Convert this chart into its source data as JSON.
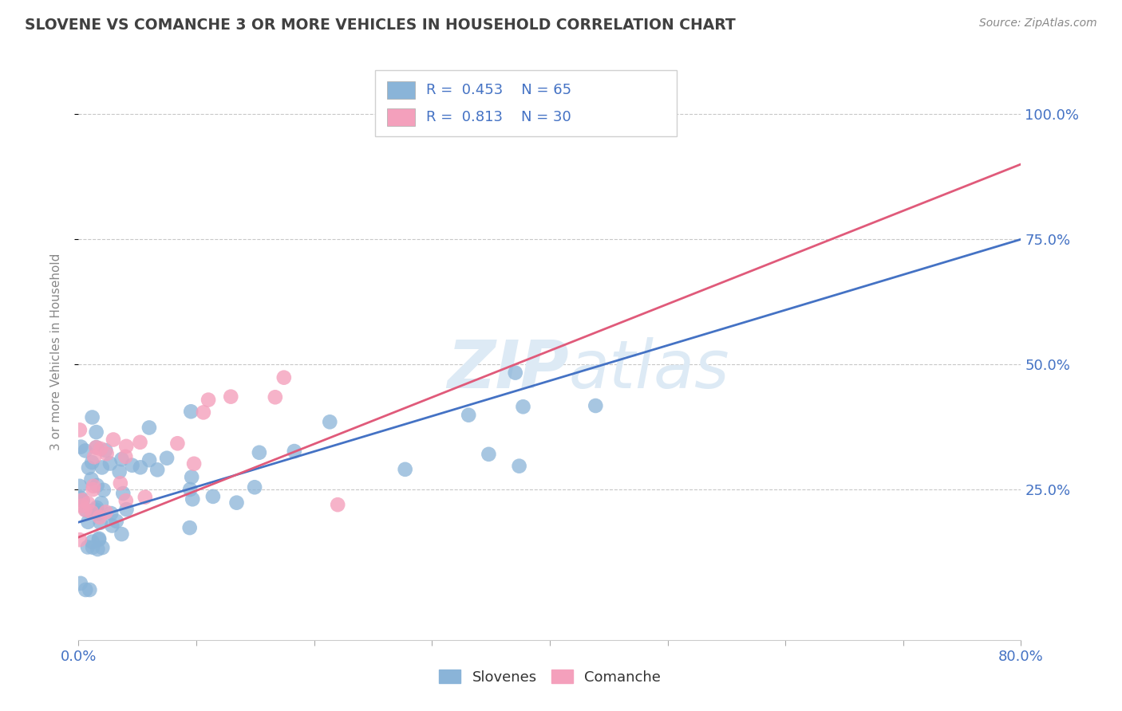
{
  "title": "SLOVENE VS COMANCHE 3 OR MORE VEHICLES IN HOUSEHOLD CORRELATION CHART",
  "source": "Source: ZipAtlas.com",
  "ylabel": "3 or more Vehicles in Household",
  "xlim": [
    0.0,
    0.8
  ],
  "ylim": [
    -0.05,
    1.1
  ],
  "xticks": [
    0.0,
    0.1,
    0.2,
    0.3,
    0.4,
    0.5,
    0.6,
    0.7,
    0.8
  ],
  "xticklabels": [
    "0.0%",
    "",
    "",
    "",
    "",
    "",
    "",
    "",
    "80.0%"
  ],
  "yticks": [
    0.25,
    0.5,
    0.75,
    1.0
  ],
  "yticklabels": [
    "25.0%",
    "50.0%",
    "75.0%",
    "100.0%"
  ],
  "slovene_color": "#8ab4d8",
  "comanche_color": "#f4a0bc",
  "slovene_line_color": "#4472c4",
  "comanche_line_color": "#e05a7a",
  "grid_color": "#c8c8c8",
  "title_color": "#404040",
  "axis_label_color": "#4472c4",
  "watermark_color": "#ddeaf5",
  "legend_r_slovene": "R = 0.453",
  "legend_n_slovene": "N = 65",
  "legend_r_comanche": "R = 0.813",
  "legend_n_comanche": "N = 30",
  "slovene_R": 0.453,
  "comanche_R": 0.813,
  "slov_line_x0": 0.0,
  "slov_line_y0": 0.185,
  "slov_line_x1": 0.8,
  "slov_line_y1": 0.75,
  "com_line_x0": 0.0,
  "com_line_y0": 0.155,
  "com_line_x1": 0.8,
  "com_line_y1": 0.9,
  "bg_color": "#ffffff"
}
